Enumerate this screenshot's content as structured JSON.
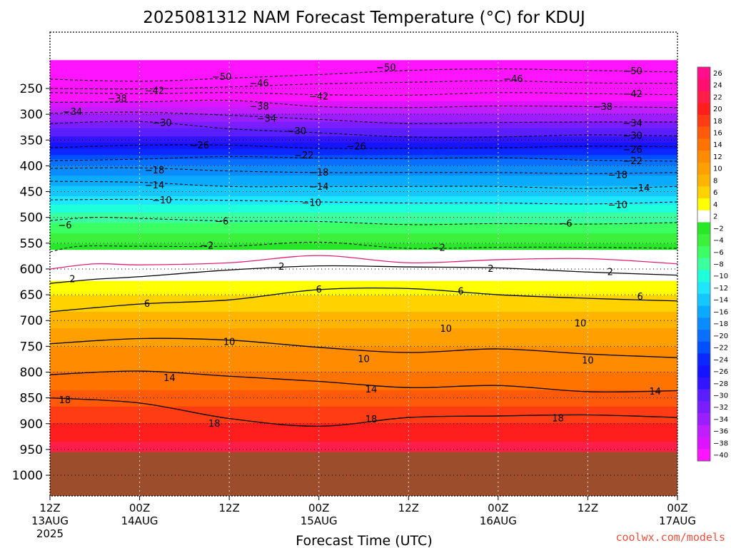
{
  "chart_data": {
    "type": "heatmap",
    "title": "2025081312 NAM Forecast Temperature (°C) for KDUJ",
    "xlabel": "Forecast Time (UTC)",
    "ylabel": "",
    "y_ticks": [
      250,
      300,
      350,
      400,
      450,
      500,
      550,
      600,
      650,
      700,
      750,
      800,
      850,
      900,
      950,
      1000
    ],
    "ylim": [
      1000,
      200
    ],
    "x_ticks": [
      {
        "hour": 0,
        "line1": "12Z",
        "line2": "13AUG",
        "line3": "2025"
      },
      {
        "hour": 12,
        "line1": "00Z",
        "line2": "14AUG",
        "line3": ""
      },
      {
        "hour": 24,
        "line1": "12Z",
        "line2": "",
        "line3": ""
      },
      {
        "hour": 36,
        "line1": "00Z",
        "line2": "15AUG",
        "line3": ""
      },
      {
        "hour": 48,
        "line1": "12Z",
        "line2": "",
        "line3": ""
      },
      {
        "hour": 60,
        "line1": "00Z",
        "line2": "16AUG",
        "line3": ""
      },
      {
        "hour": 72,
        "line1": "12Z",
        "line2": "",
        "line3": ""
      },
      {
        "hour": 84,
        "line1": "00Z",
        "line2": "17AUG",
        "line3": ""
      }
    ],
    "xlim": [
      0,
      84
    ],
    "surface_pressure": 955,
    "surface_color": "#9c4e2c",
    "colorbar": {
      "ticks": [
        26,
        24,
        22,
        20,
        18,
        16,
        14,
        12,
        10,
        8,
        6,
        4,
        2,
        -2,
        -4,
        -6,
        -8,
        -10,
        -12,
        -14,
        -16,
        -18,
        -20,
        -22,
        -24,
        -26,
        -28,
        -30,
        -32,
        -34,
        -36,
        -38,
        -40
      ],
      "colors": [
        "#ff0f8c",
        "#ff0f6e",
        "#ff1e4a",
        "#ff1e1e",
        "#ff3c14",
        "#ff5a0a",
        "#ff7300",
        "#ff8c00",
        "#ffa000",
        "#ffb400",
        "#ffd200",
        "#ffff00",
        "#ffffff",
        "#28e628",
        "#3cf03c",
        "#3cff64",
        "#3cffa0",
        "#1effdc",
        "#1ee6ff",
        "#14c8ff",
        "#0aaaff",
        "#0a8cff",
        "#0a6eff",
        "#0050ff",
        "#0a28ff",
        "#1414ff",
        "#3214ff",
        "#5a1eff",
        "#7a1eff",
        "#9a1eff",
        "#c01eff",
        "#dc14ff",
        "#ff14ff"
      ]
    },
    "temperature_profile": [
      {
        "p": 200,
        "t": -50
      },
      {
        "p": 250,
        "t": -43
      },
      {
        "p": 300,
        "t": -35
      },
      {
        "p": 350,
        "t": -28
      },
      {
        "p": 400,
        "t": -19
      },
      {
        "p": 450,
        "t": -14
      },
      {
        "p": 500,
        "t": -8
      },
      {
        "p": 550,
        "t": -3
      },
      {
        "p": 600,
        "t": 1
      },
      {
        "p": 650,
        "t": 5
      },
      {
        "p": 700,
        "t": 8
      },
      {
        "p": 750,
        "t": 11
      },
      {
        "p": 800,
        "t": 13
      },
      {
        "p": 850,
        "t": 16
      },
      {
        "p": 900,
        "t": 19
      },
      {
        "p": 955,
        "t": 22
      }
    ],
    "contours": [
      {
        "value": -50,
        "style": "dashed",
        "points": [
          [
            0,
            232
          ],
          [
            12,
            236
          ],
          [
            24,
            230
          ],
          [
            36,
            223
          ],
          [
            48,
            215
          ],
          [
            60,
            212
          ],
          [
            72,
            215
          ],
          [
            84,
            218
          ]
        ],
        "labels": [
          [
            23,
            228
          ],
          [
            45,
            210
          ],
          [
            78,
            217
          ]
        ]
      },
      {
        "value": -46,
        "style": "dashed",
        "points": [
          [
            0,
            250
          ],
          [
            12,
            251
          ],
          [
            24,
            247
          ],
          [
            36,
            241
          ],
          [
            48,
            238
          ],
          [
            60,
            235
          ],
          [
            72,
            239
          ],
          [
            84,
            240
          ]
        ],
        "labels": [
          [
            28,
            240
          ],
          [
            62,
            232
          ]
        ]
      },
      {
        "value": -42,
        "style": "dashed",
        "points": [
          [
            0,
            258
          ],
          [
            12,
            260
          ],
          [
            24,
            258
          ],
          [
            36,
            262
          ],
          [
            48,
            263
          ],
          [
            60,
            258
          ],
          [
            72,
            260
          ],
          [
            84,
            262
          ]
        ],
        "labels": [
          [
            14,
            255
          ],
          [
            36,
            266
          ],
          [
            78,
            261
          ]
        ]
      },
      {
        "value": -38,
        "style": "dashed",
        "points": [
          [
            0,
            277
          ],
          [
            12,
            276
          ],
          [
            24,
            273
          ],
          [
            36,
            285
          ],
          [
            48,
            287
          ],
          [
            60,
            284
          ],
          [
            72,
            285
          ],
          [
            84,
            287
          ]
        ],
        "labels": [
          [
            9,
            270
          ],
          [
            28,
            285
          ],
          [
            74,
            286
          ]
        ]
      },
      {
        "value": -34,
        "style": "dashed",
        "points": [
          [
            0,
            298
          ],
          [
            12,
            296
          ],
          [
            24,
            302
          ],
          [
            36,
            310
          ],
          [
            48,
            318
          ],
          [
            60,
            316
          ],
          [
            72,
            315
          ],
          [
            84,
            315
          ]
        ],
        "labels": [
          [
            3,
            296
          ],
          [
            29,
            309
          ],
          [
            78,
            318
          ]
        ]
      },
      {
        "value": -30,
        "style": "dashed",
        "points": [
          [
            0,
            318
          ],
          [
            12,
            314
          ],
          [
            24,
            328
          ],
          [
            36,
            336
          ],
          [
            48,
            344
          ],
          [
            60,
            344
          ],
          [
            72,
            340
          ],
          [
            84,
            342
          ]
        ],
        "labels": [
          [
            15,
            317
          ],
          [
            33,
            333
          ],
          [
            78,
            342
          ]
        ]
      },
      {
        "value": -26,
        "style": "dashed",
        "points": [
          [
            0,
            365
          ],
          [
            12,
            360
          ],
          [
            24,
            360
          ],
          [
            36,
            366
          ],
          [
            48,
            366
          ],
          [
            60,
            365
          ],
          [
            72,
            362
          ],
          [
            84,
            363
          ]
        ],
        "labels": [
          [
            20,
            361
          ],
          [
            41,
            363
          ],
          [
            78,
            369
          ]
        ]
      },
      {
        "value": -22,
        "style": "dashed",
        "points": [
          [
            0,
            390
          ],
          [
            12,
            387
          ],
          [
            24,
            382
          ],
          [
            36,
            385
          ],
          [
            48,
            386
          ],
          [
            60,
            384
          ],
          [
            72,
            389
          ],
          [
            84,
            391
          ]
        ],
        "labels": [
          [
            34,
            380
          ],
          [
            78,
            391
          ]
        ]
      },
      {
        "value": -18,
        "style": "dashed",
        "points": [
          [
            0,
            405
          ],
          [
            12,
            404
          ],
          [
            24,
            410
          ],
          [
            36,
            413
          ],
          [
            48,
            413
          ],
          [
            60,
            413
          ],
          [
            72,
            415
          ],
          [
            84,
            413
          ]
        ],
        "labels": [
          [
            14,
            409
          ],
          [
            36,
            413
          ],
          [
            76,
            418
          ]
        ]
      },
      {
        "value": -14,
        "style": "dashed",
        "points": [
          [
            0,
            430
          ],
          [
            12,
            432
          ],
          [
            24,
            440
          ],
          [
            36,
            440
          ],
          [
            48,
            440
          ],
          [
            60,
            440
          ],
          [
            72,
            444
          ],
          [
            84,
            440
          ]
        ],
        "labels": [
          [
            14,
            438
          ],
          [
            36,
            441
          ],
          [
            79,
            444
          ]
        ]
      },
      {
        "value": -10,
        "style": "dashed",
        "points": [
          [
            0,
            466
          ],
          [
            12,
            465
          ],
          [
            24,
            467
          ],
          [
            36,
            470
          ],
          [
            48,
            472
          ],
          [
            60,
            472
          ],
          [
            72,
            474
          ],
          [
            84,
            470
          ]
        ],
        "labels": [
          [
            15,
            467
          ],
          [
            35,
            472
          ],
          [
            76,
            476
          ]
        ]
      },
      {
        "value": -6,
        "style": "dashed",
        "points": [
          [
            0,
            506
          ],
          [
            6,
            500
          ],
          [
            12,
            502
          ],
          [
            24,
            507
          ],
          [
            36,
            508
          ],
          [
            48,
            514
          ],
          [
            60,
            512
          ],
          [
            72,
            513
          ],
          [
            84,
            510
          ]
        ],
        "labels": [
          [
            2,
            516
          ],
          [
            23,
            508
          ],
          [
            69,
            512
          ]
        ]
      },
      {
        "value": -2,
        "style": "dashed",
        "points": [
          [
            0,
            567
          ],
          [
            4,
            556
          ],
          [
            12,
            556
          ],
          [
            24,
            556
          ],
          [
            36,
            548
          ],
          [
            48,
            560
          ],
          [
            60,
            558
          ],
          [
            72,
            558
          ],
          [
            84,
            560
          ]
        ],
        "labels": [
          [
            21,
            555
          ],
          [
            52,
            559
          ]
        ]
      },
      {
        "value": 0,
        "style": "pink",
        "points": [
          [
            0,
            600
          ],
          [
            6,
            590
          ],
          [
            12,
            592
          ],
          [
            24,
            588
          ],
          [
            36,
            574
          ],
          [
            48,
            588
          ],
          [
            60,
            582
          ],
          [
            72,
            580
          ],
          [
            84,
            590
          ]
        ],
        "labels": []
      },
      {
        "value": 2,
        "style": "solid",
        "points": [
          [
            0,
            628
          ],
          [
            6,
            620
          ],
          [
            12,
            615
          ],
          [
            24,
            602
          ],
          [
            36,
            594
          ],
          [
            48,
            596
          ],
          [
            60,
            598
          ],
          [
            72,
            606
          ],
          [
            84,
            612
          ]
        ],
        "labels": [
          [
            3,
            620
          ],
          [
            31,
            596
          ],
          [
            59,
            600
          ],
          [
            75,
            606
          ]
        ]
      },
      {
        "value": 6,
        "style": "solid",
        "points": [
          [
            0,
            683
          ],
          [
            12,
            668
          ],
          [
            24,
            660
          ],
          [
            36,
            640
          ],
          [
            48,
            638
          ],
          [
            60,
            650
          ],
          [
            72,
            657
          ],
          [
            84,
            662
          ]
        ],
        "labels": [
          [
            13,
            668
          ],
          [
            36,
            640
          ],
          [
            55,
            644
          ],
          [
            79,
            654
          ]
        ]
      },
      {
        "value": 10,
        "style": "solid",
        "points": [
          [
            0,
            745
          ],
          [
            12,
            735
          ],
          [
            24,
            738
          ],
          [
            36,
            752
          ],
          [
            48,
            762
          ],
          [
            60,
            755
          ],
          [
            72,
            765
          ],
          [
            84,
            772
          ]
        ],
        "labels": [
          [
            24,
            742
          ],
          [
            42,
            775
          ],
          [
            53,
            716
          ],
          [
            71,
            706
          ],
          [
            72,
            778
          ]
        ]
      },
      {
        "value": 14,
        "style": "solid",
        "points": [
          [
            0,
            805
          ],
          [
            12,
            798
          ],
          [
            24,
            808
          ],
          [
            36,
            818
          ],
          [
            48,
            830
          ],
          [
            60,
            826
          ],
          [
            72,
            838
          ],
          [
            84,
            836
          ]
        ],
        "labels": [
          [
            16,
            812
          ],
          [
            43,
            834
          ],
          [
            81,
            838
          ]
        ]
      },
      {
        "value": 18,
        "style": "solid",
        "points": [
          [
            0,
            850
          ],
          [
            12,
            860
          ],
          [
            24,
            890
          ],
          [
            36,
            905
          ],
          [
            48,
            888
          ],
          [
            60,
            885
          ],
          [
            72,
            883
          ],
          [
            84,
            888
          ]
        ],
        "labels": [
          [
            2,
            855
          ],
          [
            22,
            900
          ],
          [
            43,
            892
          ],
          [
            68,
            890
          ]
        ]
      }
    ]
  },
  "credit": "coolwx.com/models"
}
